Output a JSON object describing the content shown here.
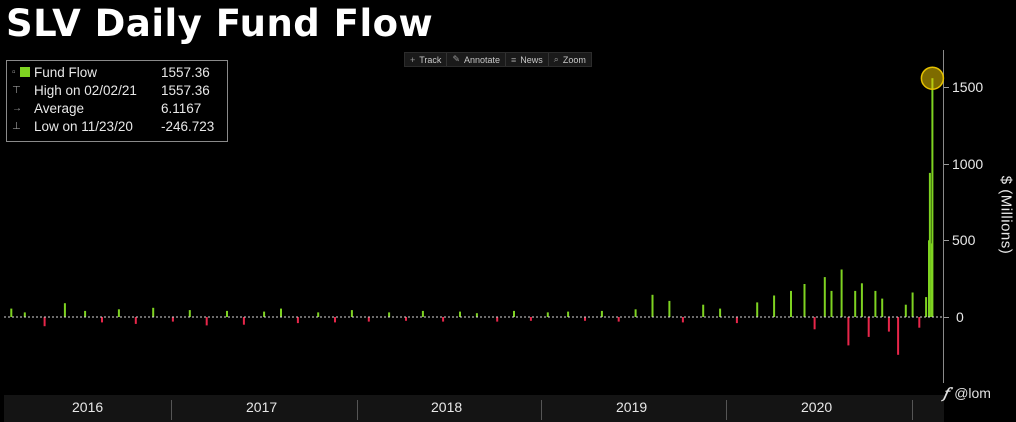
{
  "title": "SLV Daily Fund Flow",
  "toolbar": {
    "items": [
      {
        "icon": "crosshair-icon",
        "label": "Track"
      },
      {
        "icon": "pencil-icon",
        "label": "Annotate"
      },
      {
        "icon": "news-icon",
        "label": "News"
      },
      {
        "icon": "magnifier-icon",
        "label": "Zoom"
      }
    ]
  },
  "legend": {
    "series": {
      "label": "Fund Flow",
      "value": "1557.36"
    },
    "high": {
      "label": "High on 02/02/21",
      "value": "1557.36"
    },
    "average": {
      "label": "Average",
      "value": "6.1167"
    },
    "low": {
      "label": "Low on 11/23/20",
      "value": "-246.723"
    }
  },
  "watermark": {
    "text": "@lom",
    "logo_icon": "bloomberg-logo-icon"
  },
  "colors": {
    "positive": "#7ed321",
    "negative": "#e8264a",
    "highlight": "#e6c200"
  },
  "chart_data": {
    "type": "bar",
    "title": "SLV Daily Fund Flow",
    "xlabel": "",
    "ylabel": "$ (Millions)",
    "ylim": [
      -400,
      1700
    ],
    "yticks": [
      0,
      500,
      1000,
      1500
    ],
    "x_year_labels": [
      "2016",
      "2017",
      "2018",
      "2019",
      "2020"
    ],
    "grid": false,
    "legend_position": "top-left",
    "series": [
      {
        "name": "Fund Flow",
        "dates": [
          "2015-11-12",
          "2015-12-10",
          "2016-01-20",
          "2016-03-02",
          "2016-04-13",
          "2016-05-18",
          "2016-06-22",
          "2016-07-27",
          "2016-09-01",
          "2016-10-12",
          "2016-11-16",
          "2016-12-21",
          "2017-02-01",
          "2017-03-08",
          "2017-04-19",
          "2017-05-24",
          "2017-06-28",
          "2017-08-09",
          "2017-09-13",
          "2017-10-18",
          "2017-11-22",
          "2018-01-03",
          "2018-02-07",
          "2018-03-14",
          "2018-04-25",
          "2018-05-30",
          "2018-07-04",
          "2018-08-15",
          "2018-09-19",
          "2018-10-24",
          "2018-11-28",
          "2019-01-09",
          "2019-02-13",
          "2019-03-20",
          "2019-04-24",
          "2019-05-29",
          "2019-07-03",
          "2019-08-07",
          "2019-09-04",
          "2019-10-16",
          "2019-11-20",
          "2019-12-25",
          "2020-02-05",
          "2020-03-11",
          "2020-04-15",
          "2020-05-13",
          "2020-06-03",
          "2020-06-24",
          "2020-07-08",
          "2020-07-29",
          "2020-08-12",
          "2020-08-26",
          "2020-09-09",
          "2020-09-23",
          "2020-10-07",
          "2020-10-21",
          "2020-11-04",
          "2020-11-23",
          "2020-12-09",
          "2020-12-23",
          "2021-01-06",
          "2021-01-20",
          "2021-01-26",
          "2021-01-28",
          "2021-02-01",
          "2021-02-02"
        ],
        "values": [
          55,
          30,
          -60,
          90,
          40,
          -35,
          50,
          -45,
          60,
          -30,
          45,
          -55,
          40,
          -50,
          35,
          55,
          -40,
          30,
          -35,
          45,
          -30,
          30,
          -25,
          40,
          -30,
          35,
          25,
          -30,
          40,
          -25,
          30,
          35,
          -25,
          40,
          -30,
          50,
          145,
          105,
          -35,
          80,
          55,
          -40,
          95,
          140,
          170,
          215,
          -80,
          260,
          170,
          310,
          -185,
          170,
          220,
          -130,
          170,
          120,
          -95,
          -246.723,
          80,
          160,
          -70,
          130,
          500,
          940,
          480,
          1557.36
        ]
      }
    ],
    "highlight_point": {
      "date": "2021-02-02",
      "value": 1557.36
    }
  }
}
